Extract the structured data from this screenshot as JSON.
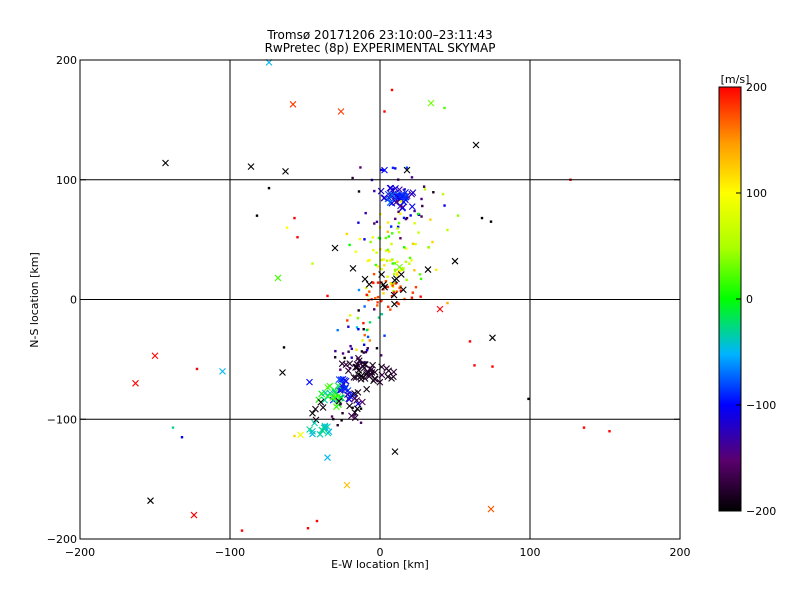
{
  "chart_data": {
    "type": "scatter",
    "title": "Tromsø 20171206 23:10:00–23:11:43",
    "subtitle": "RwPretec (8p) EXPERIMENTAL SKYMAP",
    "xlabel": "E-W location [km]",
    "ylabel": "N-S location [km]",
    "xlim": [
      -200,
      200
    ],
    "ylim": [
      -200,
      200
    ],
    "xticks": [
      -200,
      -100,
      0,
      100,
      200
    ],
    "yticks": [
      -200,
      -100,
      0,
      100,
      200
    ],
    "grid": true,
    "colorbar": {
      "label": "[m/s]",
      "min": -200,
      "max": 200,
      "ticks": [
        200,
        100,
        0,
        -100,
        -200
      ]
    },
    "points": [
      {
        "x": -58,
        "y": 163,
        "v": 180,
        "m": "x"
      },
      {
        "x": -26,
        "y": 157,
        "v": 180,
        "m": "x"
      },
      {
        "x": -143,
        "y": 114,
        "v": -200,
        "m": "x"
      },
      {
        "x": -86,
        "y": 111,
        "v": -200,
        "m": "x"
      },
      {
        "x": -63,
        "y": 107,
        "v": -200,
        "m": "x"
      },
      {
        "x": -74,
        "y": 93,
        "v": -200,
        "m": "+"
      },
      {
        "x": -82,
        "y": 70,
        "v": -200,
        "m": "+"
      },
      {
        "x": -74,
        "y": 198,
        "v": -50,
        "m": "x"
      },
      {
        "x": 34,
        "y": 164,
        "v": 30,
        "m": "x"
      },
      {
        "x": 43,
        "y": 160,
        "v": 20,
        "m": "+"
      },
      {
        "x": 64,
        "y": 129,
        "v": -200,
        "m": "x"
      },
      {
        "x": 8,
        "y": 175,
        "v": 200,
        "m": "+"
      },
      {
        "x": 3,
        "y": 157,
        "v": 200,
        "m": "+"
      },
      {
        "x": 3,
        "y": 108,
        "v": -100,
        "m": "x"
      },
      {
        "x": 18,
        "y": 108,
        "v": -200,
        "m": "x"
      },
      {
        "x": 127,
        "y": 100,
        "v": 200,
        "m": "+"
      },
      {
        "x": 74,
        "y": 65,
        "v": -200,
        "m": "+"
      },
      {
        "x": 68,
        "y": 68,
        "v": -200,
        "m": "+"
      },
      {
        "x": 30,
        "y": 92,
        "v": 60,
        "m": "+"
      },
      {
        "x": 42,
        "y": 88,
        "v": 60,
        "m": "+"
      },
      {
        "x": 52,
        "y": 70,
        "v": 40,
        "m": "+"
      },
      {
        "x": 45,
        "y": 58,
        "v": 60,
        "m": "+"
      },
      {
        "x": 35,
        "y": 48,
        "v": 120,
        "m": "+"
      },
      {
        "x": 32,
        "y": 25,
        "v": -200,
        "m": "x"
      },
      {
        "x": 50,
        "y": 32,
        "v": -200,
        "m": "x"
      },
      {
        "x": 40,
        "y": -8,
        "v": 200,
        "m": "x"
      },
      {
        "x": 45,
        "y": -3,
        "v": 140,
        "m": "+"
      },
      {
        "x": 60,
        "y": -35,
        "v": 200,
        "m": "+"
      },
      {
        "x": 75,
        "y": -32,
        "v": -200,
        "m": "x"
      },
      {
        "x": 63,
        "y": -55,
        "v": 200,
        "m": "+"
      },
      {
        "x": 75,
        "y": -56,
        "v": 200,
        "m": "+"
      },
      {
        "x": 99,
        "y": -83,
        "v": -200,
        "m": "+"
      },
      {
        "x": 136,
        "y": -107,
        "v": 200,
        "m": "+"
      },
      {
        "x": 153,
        "y": -110,
        "v": 200,
        "m": "+"
      },
      {
        "x": 10,
        "y": -127,
        "v": -200,
        "m": "x"
      },
      {
        "x": -22,
        "y": -155,
        "v": 130,
        "m": "x"
      },
      {
        "x": 74,
        "y": -175,
        "v": 170,
        "m": "x"
      },
      {
        "x": -68,
        "y": 18,
        "v": 20,
        "m": "x"
      },
      {
        "x": -64,
        "y": -40,
        "v": -200,
        "m": "+"
      },
      {
        "x": -65,
        "y": -61,
        "v": -200,
        "m": "x"
      },
      {
        "x": -47,
        "y": -69,
        "v": -100,
        "m": "x"
      },
      {
        "x": -35,
        "y": 3,
        "v": 200,
        "m": "+"
      },
      {
        "x": -150,
        "y": -47,
        "v": 200,
        "m": "x"
      },
      {
        "x": -163,
        "y": -70,
        "v": 200,
        "m": "x"
      },
      {
        "x": -122,
        "y": -58,
        "v": 200,
        "m": "+"
      },
      {
        "x": -105,
        "y": -60,
        "v": -50,
        "m": "x"
      },
      {
        "x": -138,
        "y": -107,
        "v": -30,
        "m": "+"
      },
      {
        "x": -132,
        "y": -115,
        "v": -100,
        "m": "+"
      },
      {
        "x": -153,
        "y": -168,
        "v": -200,
        "m": "x"
      },
      {
        "x": -124,
        "y": -180,
        "v": 200,
        "m": "x"
      },
      {
        "x": -92,
        "y": -193,
        "v": 200,
        "m": "+"
      },
      {
        "x": -48,
        "y": -191,
        "v": 200,
        "m": "+"
      },
      {
        "x": -53,
        "y": -113,
        "v": 90,
        "m": "x"
      },
      {
        "x": -45,
        "y": -110,
        "v": -40,
        "m": "x"
      },
      {
        "x": -35,
        "y": -132,
        "v": -50,
        "m": "x"
      },
      {
        "x": -45,
        "y": -95,
        "v": -200,
        "m": "x"
      },
      {
        "x": -57,
        "y": -114,
        "v": 120,
        "m": "+"
      },
      {
        "x": -42,
        "y": -185,
        "v": 200,
        "m": "+"
      },
      {
        "x": -57,
        "y": 68,
        "v": 200,
        "m": "+"
      },
      {
        "x": -62,
        "y": 60,
        "v": 100,
        "m": "+"
      },
      {
        "x": -55,
        "y": 52,
        "v": 200,
        "m": "+"
      },
      {
        "x": -45,
        "y": 30,
        "v": 60,
        "m": "+"
      },
      {
        "x": -30,
        "y": 43,
        "v": -200,
        "m": "x"
      },
      {
        "x": -18,
        "y": 26,
        "v": -200,
        "m": "x"
      },
      {
        "x": -10,
        "y": 17,
        "v": -200,
        "m": "x"
      },
      {
        "x": 13,
        "y": 27,
        "v": 30,
        "m": "x"
      }
    ],
    "clusters": [
      {
        "cx": 12,
        "cy": 85,
        "sx": 5,
        "sy": 4,
        "n": 45,
        "vmin": -140,
        "vmax": -70,
        "m": "x"
      },
      {
        "cx": 14,
        "cy": 80,
        "sx": 14,
        "sy": 16,
        "n": 40,
        "vmin": -200,
        "vmax": -80,
        "m": "+"
      },
      {
        "cx": 10,
        "cy": 48,
        "sx": 12,
        "sy": 14,
        "n": 45,
        "vmin": 0,
        "vmax": 140,
        "m": "+"
      },
      {
        "cx": 5,
        "cy": 28,
        "sx": 8,
        "sy": 10,
        "n": 35,
        "vmin": 20,
        "vmax": 120,
        "m": "+"
      },
      {
        "cx": 8,
        "cy": 5,
        "sx": 10,
        "sy": 8,
        "n": 35,
        "vmin": 160,
        "vmax": 200,
        "m": "+"
      },
      {
        "cx": 4,
        "cy": 8,
        "sx": 8,
        "sy": 8,
        "n": 10,
        "vmin": -200,
        "vmax": -200,
        "m": "x"
      },
      {
        "cx": -10,
        "cy": -20,
        "sx": 7,
        "sy": 12,
        "n": 25,
        "vmin": -200,
        "vmax": 200,
        "m": "+"
      },
      {
        "cx": -15,
        "cy": -45,
        "sx": 8,
        "sy": 8,
        "n": 20,
        "vmin": -200,
        "vmax": -100,
        "m": "+"
      },
      {
        "cx": -12,
        "cy": -58,
        "sx": 7,
        "sy": 6,
        "n": 30,
        "vmin": -200,
        "vmax": -170,
        "m": "x"
      },
      {
        "cx": -5,
        "cy": -62,
        "sx": 8,
        "sy": 6,
        "n": 15,
        "vmin": -200,
        "vmax": -170,
        "m": "x"
      },
      {
        "cx": -25,
        "cy": -75,
        "sx": 5,
        "sy": 5,
        "n": 25,
        "vmin": -130,
        "vmax": -80,
        "m": "x"
      },
      {
        "cx": -34,
        "cy": -80,
        "sx": 4,
        "sy": 5,
        "n": 20,
        "vmin": -40,
        "vmax": 30,
        "m": "x"
      },
      {
        "cx": -30,
        "cy": -90,
        "sx": 10,
        "sy": 8,
        "n": 15,
        "vmin": -200,
        "vmax": -160,
        "m": "x"
      },
      {
        "cx": -40,
        "cy": -110,
        "sx": 6,
        "sy": 3,
        "n": 12,
        "vmin": -50,
        "vmax": -20,
        "m": "x"
      },
      {
        "cx": -25,
        "cy": -100,
        "sx": 10,
        "sy": 10,
        "n": 10,
        "vmin": -200,
        "vmax": -150,
        "m": "+"
      }
    ]
  }
}
